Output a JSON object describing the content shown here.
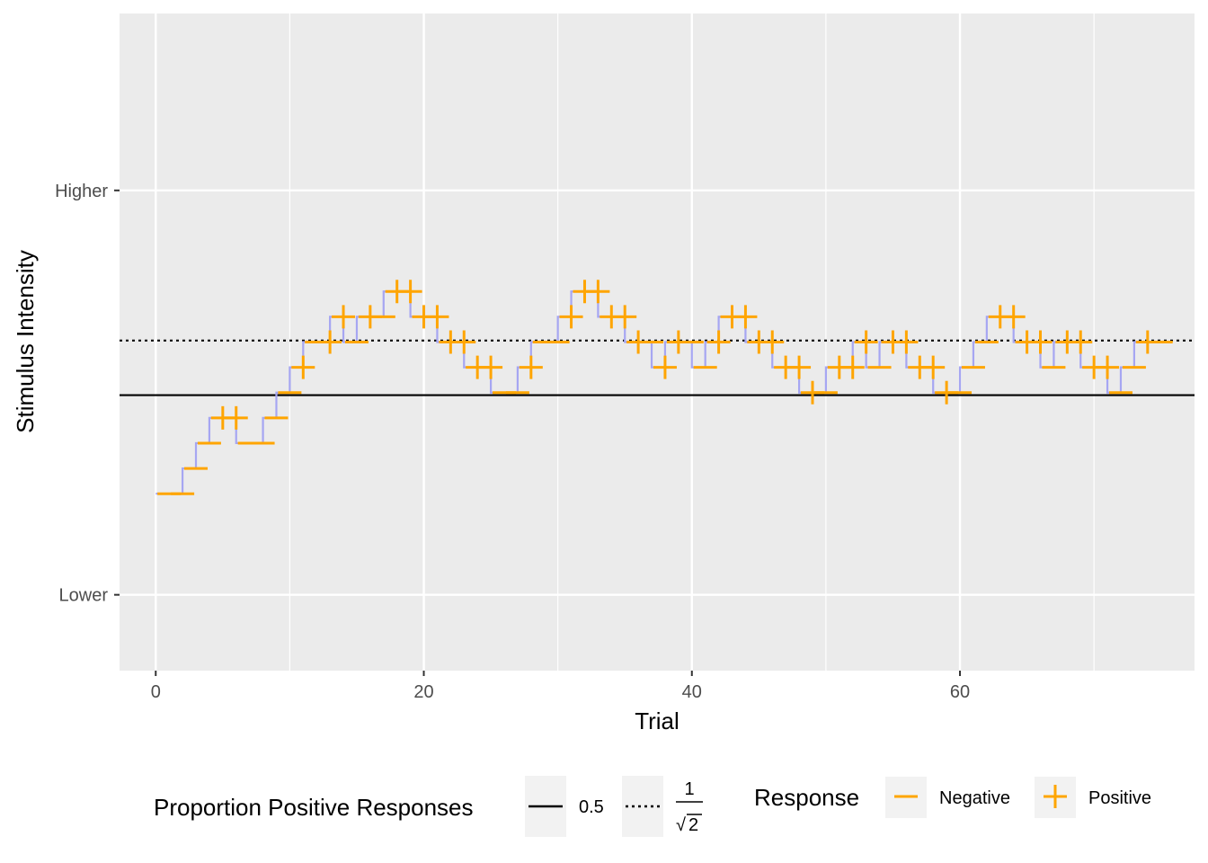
{
  "chart_data": {
    "type": "line",
    "xlabel": "Trial",
    "ylabel": "Stimulus Intensity",
    "xlim": [
      -2.7,
      77.5
    ],
    "ylim": [
      -0.5,
      12.5
    ],
    "x_ticks": [
      0,
      20,
      40,
      60
    ],
    "y_ticks": [
      {
        "value": 1,
        "label": "Lower"
      },
      {
        "value": 9,
        "label": "Higher"
      }
    ],
    "grid": true,
    "reference_lines": [
      {
        "value": 0.5,
        "label": "0.5",
        "y": 4.95,
        "style": "solid"
      },
      {
        "value": "1/√2",
        "label_num": "1",
        "label_den": "2",
        "y": 6.03,
        "style": "dotted"
      }
    ],
    "staircase_color": "#a6a6f2",
    "marker_color": "#ffa500",
    "levels": [
      3,
      3,
      3.5,
      4,
      4.5,
      4.5,
      4,
      4,
      4.5,
      5,
      5.5,
      6,
      6,
      6.5,
      6,
      6.5,
      6.5,
      7,
      7,
      6.5,
      6.5,
      6,
      6,
      5.5,
      5.5,
      5,
      5,
      5.5,
      6,
      6,
      6.5,
      7,
      7,
      6.5,
      6.5,
      6,
      6,
      5.5,
      6,
      6,
      5.5,
      6,
      6.5,
      6.5,
      6,
      6,
      5.5,
      5.5,
      5,
      5,
      5.5,
      5.5,
      6,
      5.5,
      6,
      6,
      5.5,
      5.5,
      5,
      5,
      5.5,
      6,
      6.5,
      6.5,
      6,
      6,
      5.5,
      6,
      6,
      5.5,
      5.5,
      5,
      5.5,
      6,
      6
    ],
    "responses": [
      0,
      0,
      0,
      0,
      1,
      1,
      0,
      0,
      0,
      0,
      1,
      0,
      1,
      1,
      0,
      1,
      0,
      1,
      1,
      1,
      1,
      1,
      1,
      1,
      1,
      0,
      0,
      1,
      0,
      0,
      1,
      1,
      1,
      1,
      1,
      1,
      0,
      1,
      1,
      0,
      0,
      1,
      1,
      1,
      1,
      1,
      1,
      1,
      1,
      0,
      1,
      1,
      1,
      0,
      1,
      1,
      1,
      1,
      1,
      0,
      0,
      0,
      1,
      1,
      1,
      1,
      0,
      1,
      1,
      1,
      1,
      0,
      0,
      1,
      0
    ],
    "legend": {
      "position": "bottom",
      "proportion_title": "Proportion Positive Responses",
      "response_title": "Response",
      "response_items": [
        "Negative",
        "Positive"
      ]
    }
  },
  "glyphs": {
    "negative": "−",
    "positive": "+",
    "sqrt": "√"
  }
}
